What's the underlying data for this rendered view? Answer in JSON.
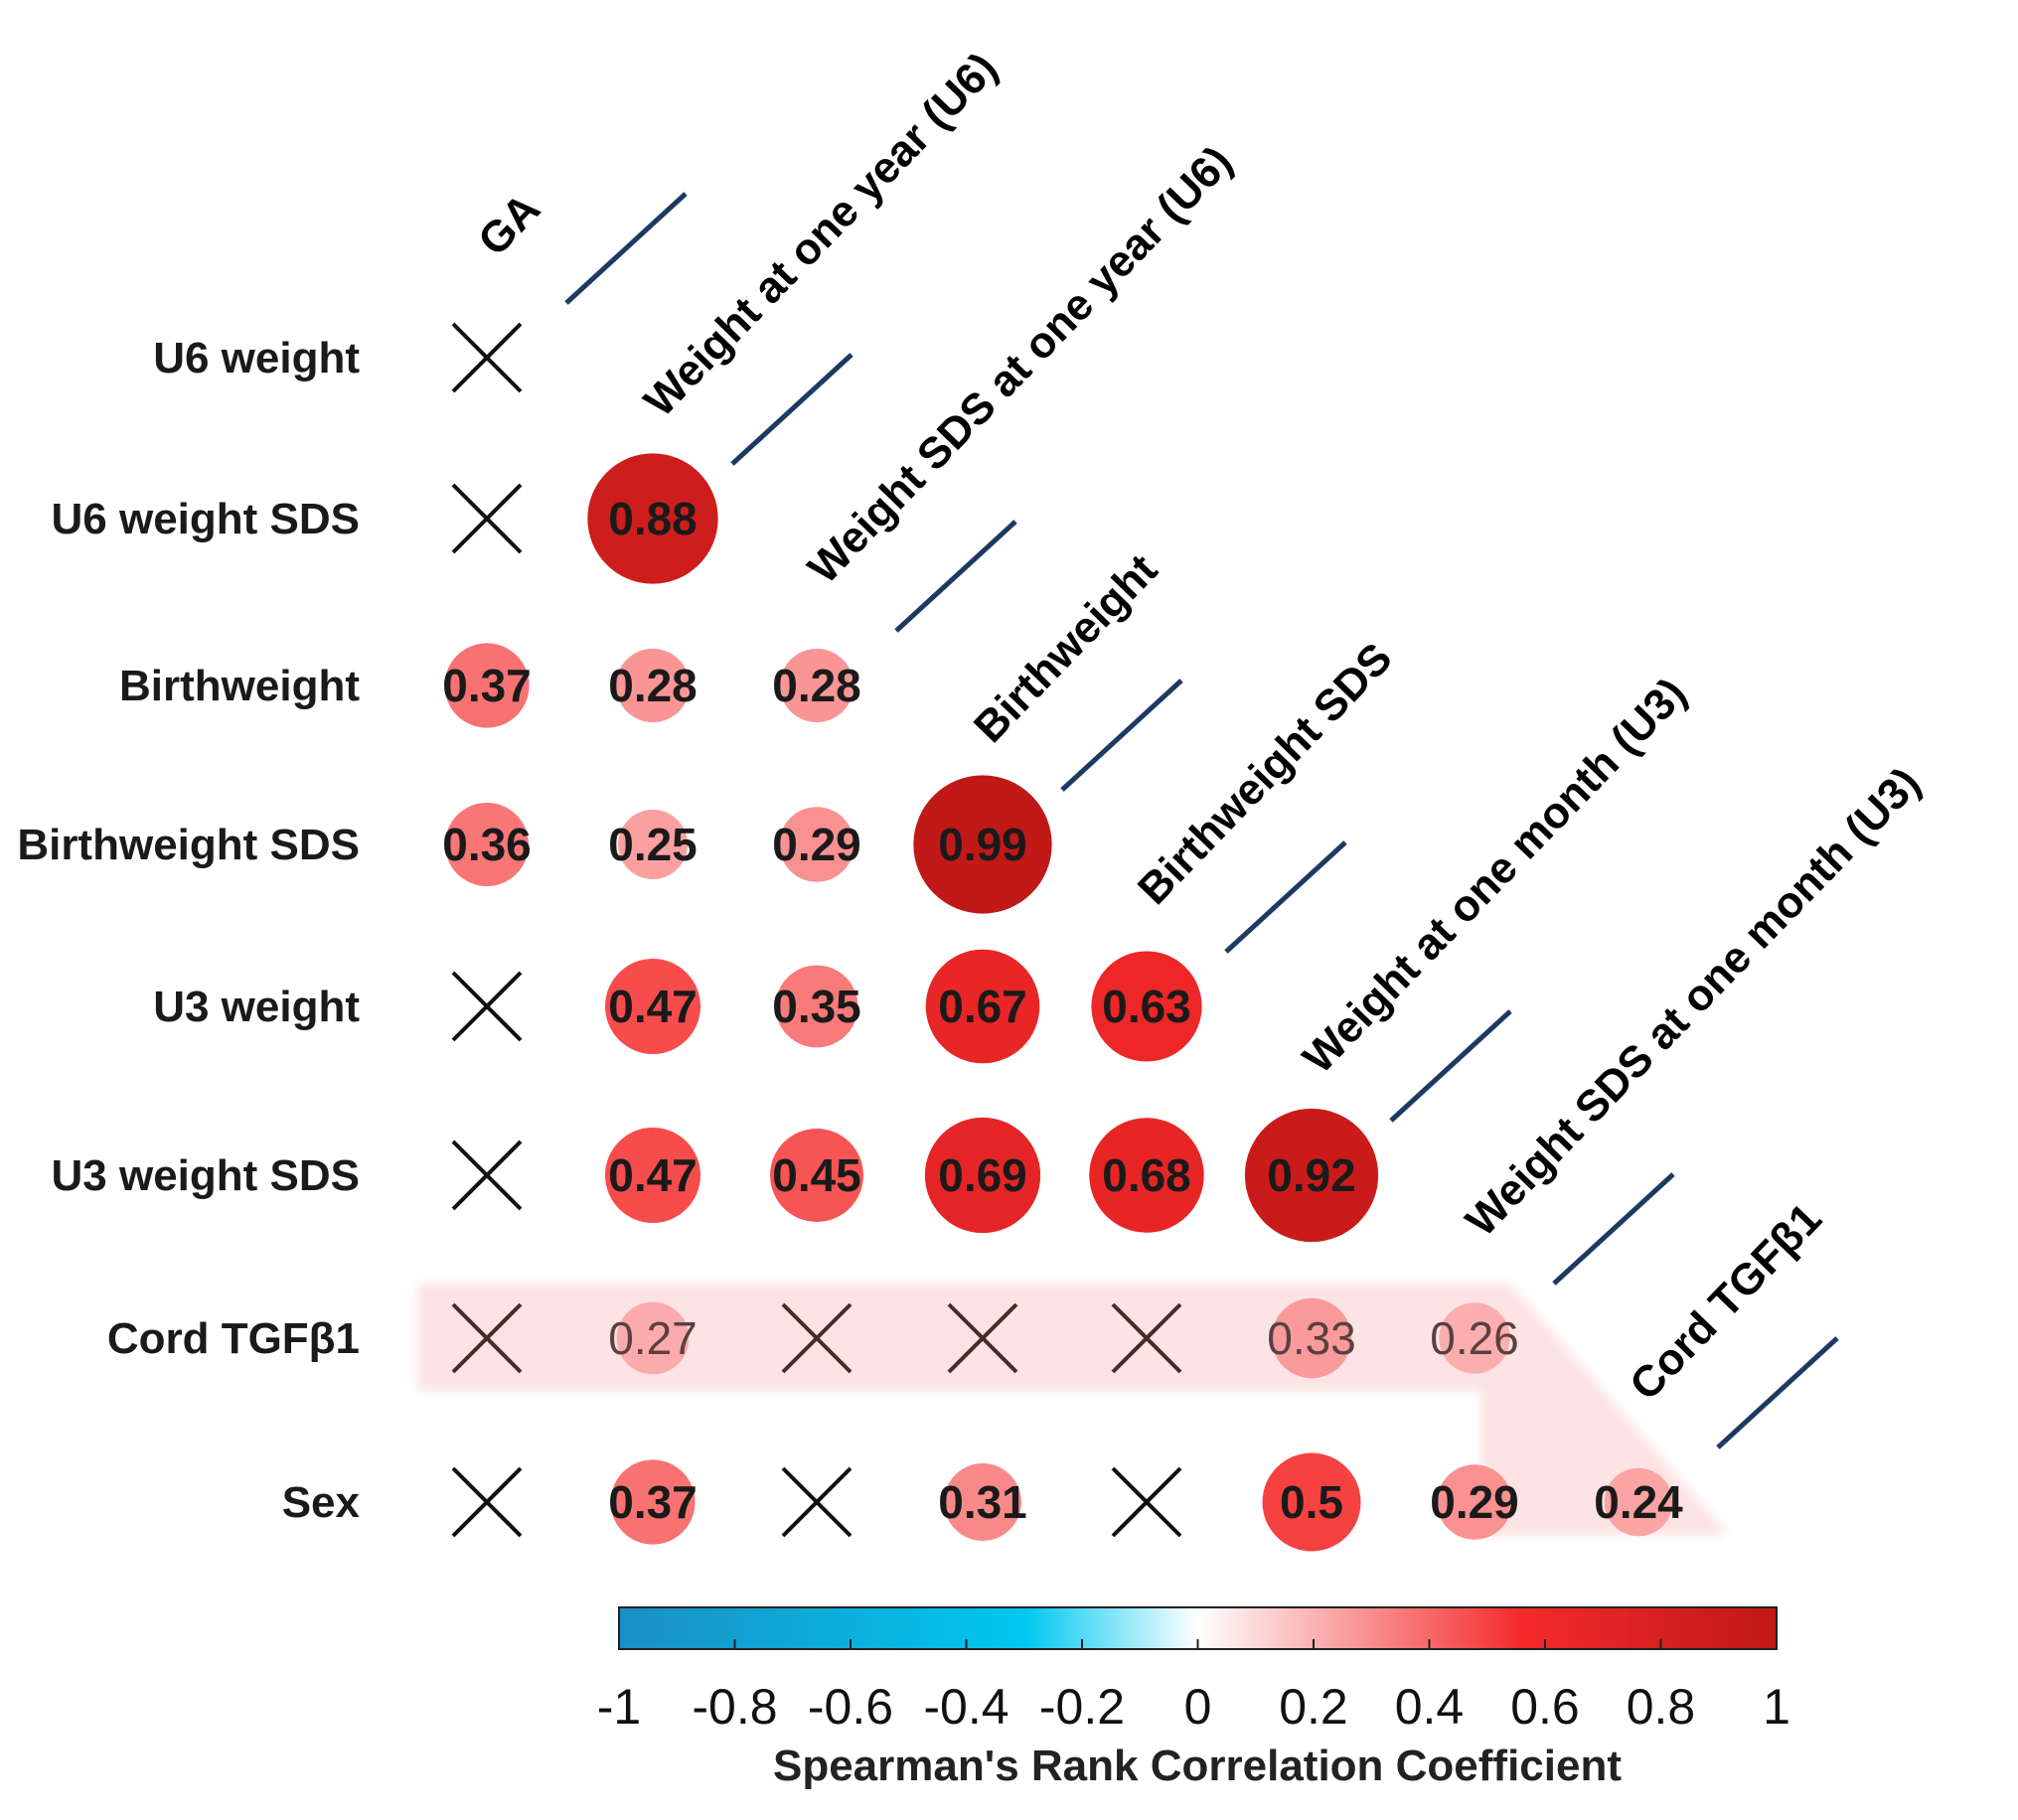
{
  "chart_data": {
    "type": "heatmap",
    "style": "lower-triangular correlation matrix with circles",
    "title": "",
    "columns": [
      "GA",
      "Weight at one year (U6)",
      "Weight SDS at one year (U6)",
      "Birthweight",
      "Birthweight SDS",
      "Weight at one month (U3)",
      "Weight SDS at one month (U3)",
      "Cord TGFβ1"
    ],
    "rows": [
      "U6 weight",
      "U6 weight SDS",
      "Birthweight",
      "Birthweight SDS",
      "U3 weight",
      "U3 weight SDS",
      "Cord TGFβ1",
      "Sex"
    ],
    "matrix": [
      [
        null
      ],
      [
        null,
        0.88
      ],
      [
        0.37,
        0.28,
        0.28
      ],
      [
        0.36,
        0.25,
        0.29,
        0.99
      ],
      [
        null,
        0.47,
        0.35,
        0.67,
        0.63
      ],
      [
        null,
        0.47,
        0.45,
        0.69,
        0.68,
        0.92
      ],
      [
        null,
        0.27,
        null,
        null,
        null,
        0.33,
        0.26
      ],
      [
        null,
        0.37,
        null,
        0.31,
        null,
        0.5,
        0.29,
        0.24
      ]
    ],
    "highlighted_row": "Cord TGFβ1",
    "not_significant_marker": "×",
    "colorbar": {
      "min": -1,
      "max": 1,
      "ticks": [
        "-1",
        "-0.8",
        "-0.6",
        "-0.4",
        "-0.2",
        "0",
        "0.2",
        "0.4",
        "0.6",
        "0.8",
        "1"
      ],
      "label": "Spearman's Rank Correlation Coefficient",
      "colors": {
        "negative_end": "#1a8fc4",
        "negative_mid": "#00c8f0",
        "zero": "#ffffff",
        "positive_mid": "#f52a2a",
        "positive_end": "#c01818"
      }
    },
    "colors": {
      "diagonal_separator": "#1c3a63",
      "highlight_band": "#fde0e0",
      "cross": "#111111"
    }
  }
}
